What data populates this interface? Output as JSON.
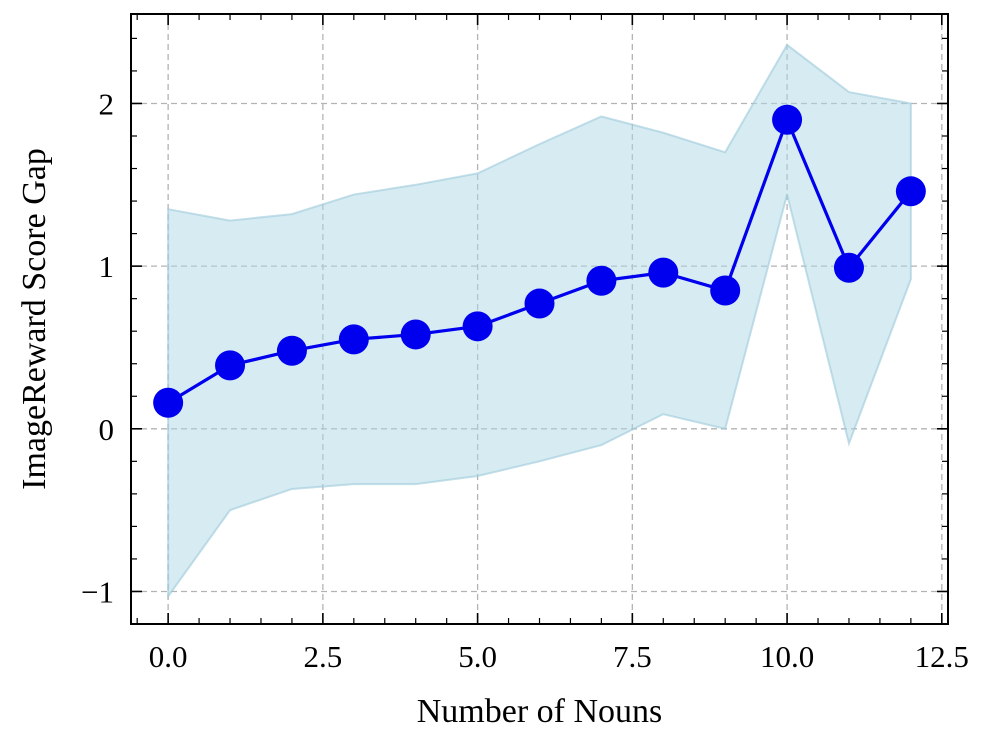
{
  "chart_data": {
    "type": "line",
    "xlabel": "Number of Nouns",
    "ylabel": "ImageReward Score Gap",
    "xlim": [
      -0.6,
      12.6
    ],
    "ylim": [
      -1.2,
      2.55
    ],
    "xticks": [
      0.0,
      2.5,
      5.0,
      7.5,
      10.0,
      12.5
    ],
    "xtick_labels": [
      "0.0",
      "2.5",
      "5.0",
      "7.5",
      "10.0",
      "12.5"
    ],
    "yticks": [
      -1,
      0,
      1,
      2
    ],
    "ytick_labels": [
      "−1",
      "0",
      "1",
      "2"
    ],
    "grid": true,
    "series": [
      {
        "x": [
          0,
          1,
          2,
          3,
          4,
          5,
          6,
          7,
          8,
          9,
          10,
          11,
          12
        ],
        "values": [
          0.16,
          0.39,
          0.48,
          0.55,
          0.58,
          0.63,
          0.77,
          0.91,
          0.96,
          0.85,
          1.9,
          0.99,
          1.46
        ],
        "band_upper": [
          1.35,
          1.28,
          1.32,
          1.44,
          1.5,
          1.57,
          1.75,
          1.92,
          1.82,
          1.7,
          2.36,
          2.07,
          2.0
        ],
        "band_lower": [
          -1.03,
          -0.5,
          -0.37,
          -0.34,
          -0.34,
          -0.29,
          -0.2,
          -0.1,
          0.09,
          0.0,
          1.44,
          -0.09,
          0.92
        ]
      }
    ],
    "colors": {
      "line": "#0000ee",
      "band_fill": "#add8e6",
      "band_edge": "#9cc9da",
      "grid": "#b3b3b3"
    }
  }
}
